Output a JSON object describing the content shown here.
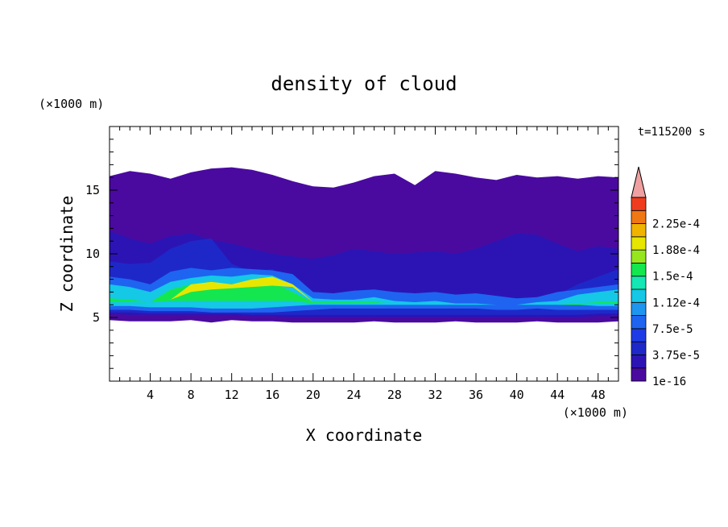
{
  "chart_data": {
    "type": "heatmap",
    "title": "density of cloud",
    "xlabel": "X coordinate",
    "ylabel": "Z coordinate",
    "x_unit": "(×1000 m)",
    "y_unit": "(×1000 m)",
    "time_label": "t=115200 s",
    "xlim": [
      0,
      50
    ],
    "ylim": [
      0,
      20
    ],
    "x_ticks": [
      4,
      8,
      12,
      16,
      20,
      24,
      28,
      32,
      36,
      40,
      44,
      48
    ],
    "y_ticks": [
      5,
      10,
      15
    ],
    "colorbar": {
      "levels": [
        "1e-16",
        "",
        "3.75e-5",
        "",
        "7.5e-5",
        "",
        "1.12e-4",
        "",
        "1.5e-4",
        "",
        "1.88e-4",
        "",
        "2.25e-4",
        ""
      ],
      "colors": [
        "#4a0aa0",
        "#2c14b4",
        "#1e28c8",
        "#1e3ce6",
        "#1e64f0",
        "#1e96f0",
        "#14c8e6",
        "#14e6b4",
        "#14e650",
        "#96e61e",
        "#e6e600",
        "#f0b400",
        "#f07814",
        "#f03c1e"
      ],
      "extend_color": "#f0a0a0"
    },
    "cloud_layers": [
      {
        "level": 0,
        "top": [
          16.1,
          16.5,
          16.3,
          15.9,
          16.4,
          16.7,
          16.8,
          16.6,
          16.2,
          15.7,
          15.3,
          15.2,
          15.6,
          16.1,
          16.3,
          15.4,
          16.5,
          16.3,
          16.0,
          15.8,
          16.2,
          16.0,
          16.1,
          15.9,
          16.1,
          16.0
        ],
        "bottom": [
          4.8,
          4.7,
          4.7,
          4.7,
          4.8,
          4.6,
          4.8,
          4.7,
          4.7,
          4.6,
          4.6,
          4.6,
          4.6,
          4.7,
          4.6,
          4.6,
          4.6,
          4.7,
          4.6,
          4.6,
          4.6,
          4.7,
          4.6,
          4.6,
          4.6,
          4.7
        ]
      },
      {
        "level": 1,
        "top": [
          11.8,
          11.2,
          10.8,
          11.4,
          11.6,
          11.1,
          10.8,
          10.4,
          10.0,
          9.8,
          9.6,
          9.9,
          10.4,
          10.2,
          10.0,
          10.1,
          10.2,
          10.0,
          10.4,
          11.0,
          11.6,
          11.5,
          10.8,
          10.2,
          10.6,
          10.4
        ],
        "bottom": [
          5.3,
          5.2,
          5.2,
          5.2,
          5.2,
          5.2,
          5.2,
          5.1,
          5.1,
          5.0,
          5.0,
          5.0,
          5.0,
          5.0,
          5.0,
          5.0,
          5.0,
          5.0,
          5.0,
          5.0,
          5.0,
          5.0,
          5.0,
          5.0,
          5.1,
          5.1
        ]
      },
      {
        "level": 2,
        "top": [
          9.4,
          9.2,
          9.3,
          10.4,
          11.0,
          11.2,
          9.2,
          8.6,
          8.8,
          7.8,
          6.4,
          6.2,
          6.3,
          6.6,
          6.5,
          6.3,
          6.1,
          6.0,
          6.4,
          6.2,
          6.0,
          6.3,
          6.8,
          7.6,
          8.2,
          8.8
        ],
        "bottom": [
          5.4,
          5.4,
          5.3,
          5.3,
          5.3,
          5.3,
          5.3,
          5.2,
          5.2,
          5.2,
          5.2,
          5.2,
          5.2,
          5.2,
          5.2,
          5.2,
          5.2,
          5.2,
          5.2,
          5.2,
          5.2,
          5.2,
          5.2,
          5.2,
          5.3,
          5.3
        ]
      },
      {
        "level": 4,
        "top": [
          8.2,
          8.0,
          7.6,
          8.6,
          8.9,
          8.7,
          8.9,
          8.8,
          8.7,
          8.4,
          7.0,
          6.9,
          7.1,
          7.2,
          7.0,
          6.9,
          7.0,
          6.8,
          6.9,
          6.7,
          6.5,
          6.6,
          7.0,
          7.2,
          7.4,
          7.6
        ],
        "bottom": [
          5.6,
          5.6,
          5.5,
          5.5,
          5.5,
          5.4,
          5.4,
          5.4,
          5.4,
          5.5,
          5.6,
          5.7,
          5.7,
          5.7,
          5.7,
          5.7,
          5.7,
          5.7,
          5.7,
          5.6,
          5.6,
          5.7,
          5.6,
          5.6,
          5.6,
          5.6
        ]
      },
      {
        "level": 6,
        "top": [
          7.6,
          7.4,
          7.0,
          7.8,
          8.1,
          8.3,
          8.2,
          8.4,
          8.3,
          7.6,
          6.5,
          6.4,
          6.4,
          6.6,
          6.3,
          6.2,
          6.3,
          6.1,
          6.1,
          6.0,
          6.0,
          6.2,
          6.3,
          6.8,
          7.0,
          7.2
        ],
        "bottom": [
          5.9,
          5.9,
          5.8,
          5.8,
          5.8,
          5.7,
          5.7,
          5.7,
          5.8,
          5.9,
          6.0,
          6.0,
          6.0,
          6.0,
          6.0,
          6.0,
          6.0,
          6.0,
          6.0,
          6.0,
          6.0,
          6.0,
          6.0,
          6.0,
          5.9,
          5.9
        ]
      },
      {
        "level": 8,
        "top": [
          6.5,
          6.4,
          6.2,
          7.2,
          7.6,
          7.8,
          7.4,
          7.8,
          7.8,
          7.0,
          6.2,
          6.2,
          6.2,
          6.2,
          6.1,
          6.1,
          6.1,
          6.0,
          6.0,
          6.0,
          6.0,
          6.0,
          6.0,
          6.1,
          6.2,
          6.2
        ],
        "bottom": [
          6.2,
          6.2,
          6.2,
          6.3,
          6.3,
          6.3,
          6.3,
          6.3,
          6.3,
          6.3,
          6.1,
          6.1,
          6.1,
          6.1,
          6.1,
          6.1,
          6.1,
          6.0,
          6.0,
          6.0,
          6.0,
          6.0,
          6.0,
          6.0,
          6.1,
          6.1
        ]
      },
      {
        "level": 10,
        "top": [
          6.2,
          6.2,
          6.2,
          6.4,
          7.6,
          7.8,
          7.6,
          8.0,
          8.2,
          7.6,
          6.2,
          6.2,
          6.2,
          6.2,
          6.1,
          6.1,
          6.1,
          6.0,
          6.0,
          6.0,
          6.0,
          6.0,
          6.0,
          6.0,
          6.1,
          6.1
        ],
        "bottom": [
          6.2,
          6.2,
          6.2,
          6.4,
          7.0,
          7.2,
          7.3,
          7.4,
          7.5,
          7.4,
          6.2,
          6.2,
          6.2,
          6.2,
          6.1,
          6.1,
          6.1,
          6.0,
          6.0,
          6.0,
          6.0,
          6.0,
          6.0,
          6.0,
          6.1,
          6.1
        ]
      }
    ]
  }
}
